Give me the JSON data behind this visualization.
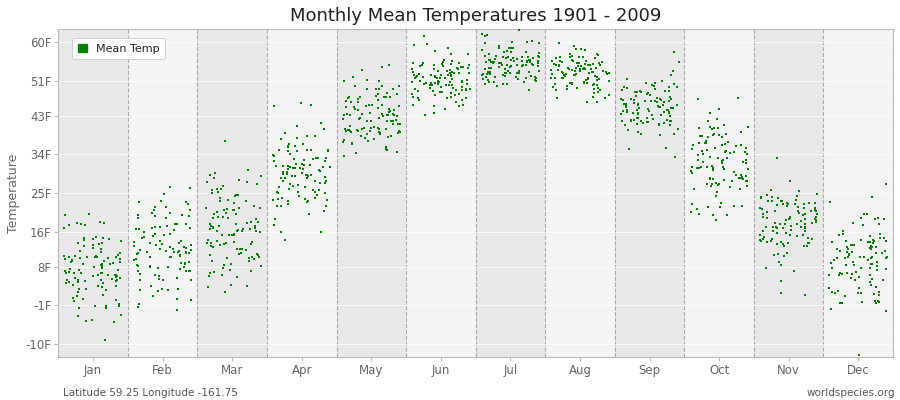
{
  "title": "Monthly Mean Temperatures 1901 - 2009",
  "ylabel": "Temperature",
  "subtitle_left": "Latitude 59.25 Longitude -161.75",
  "subtitle_right": "worldspecies.org",
  "yticks": [
    -10,
    -1,
    8,
    16,
    25,
    34,
    43,
    51,
    60
  ],
  "ytick_labels": [
    "-10F",
    "-1F",
    "8F",
    "16F",
    "25F",
    "34F",
    "43F",
    "51F",
    "60F"
  ],
  "months": [
    "Jan",
    "Feb",
    "Mar",
    "Apr",
    "May",
    "Jun",
    "Jul",
    "Aug",
    "Sep",
    "Oct",
    "Nov",
    "Dec"
  ],
  "n_years": 109,
  "mean_temps_F": [
    8.0,
    11.0,
    17.0,
    30.0,
    42.0,
    51.0,
    55.0,
    53.0,
    45.0,
    32.0,
    18.0,
    10.0
  ],
  "std_temps_F": [
    6.5,
    6.5,
    6.5,
    6.0,
    5.0,
    3.5,
    3.0,
    3.0,
    4.0,
    5.5,
    5.5,
    6.5
  ],
  "dot_color": "#008000",
  "background_color": "#FFFFFF",
  "plot_bg_light": "#F4F4F4",
  "plot_bg_dark": "#E8E8E8",
  "legend_label": "Mean Temp",
  "dot_size": 3,
  "marker": "s",
  "ylim": [
    -13,
    63
  ],
  "xlim": [
    0,
    12
  ]
}
